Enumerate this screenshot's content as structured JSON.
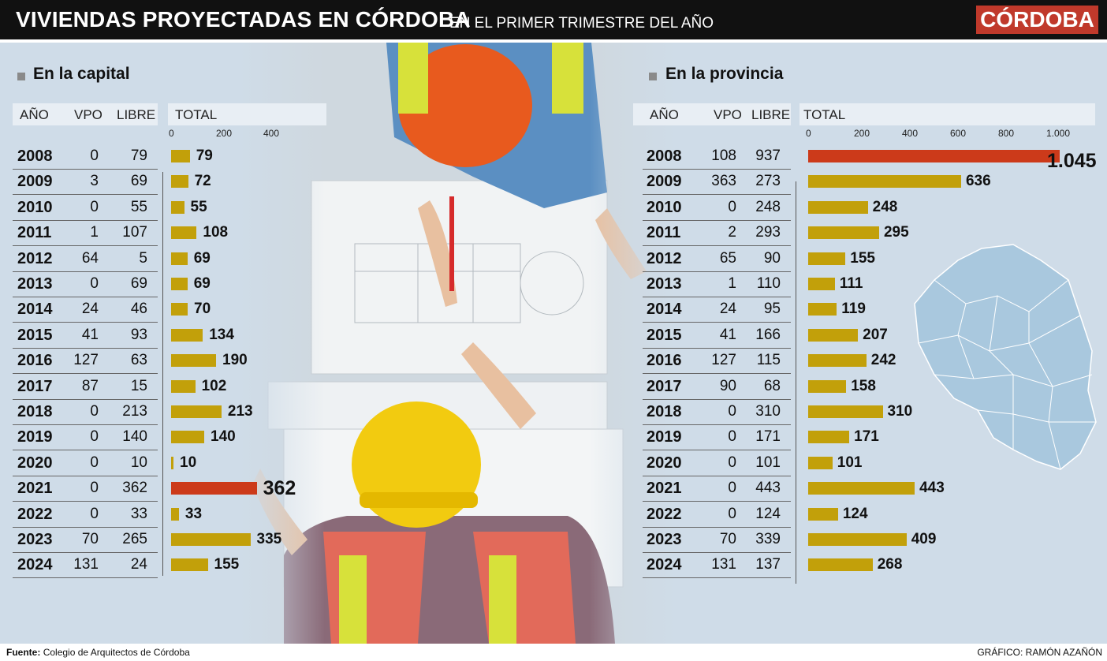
{
  "header": {
    "title": "VIVIENDAS  PROYECTADAS EN CÓRDOBA",
    "subtitle": "EN EL PRIMER TRIMESTRE DEL AÑO",
    "brand": "CÓRDOBA"
  },
  "columns": {
    "year": "AÑO",
    "vpo": "VPO",
    "libre": "LIBRE",
    "total": "TOTAL"
  },
  "footer": {
    "source_label": "Fuente:",
    "source": "Colegio de Arquitectos de Córdoba",
    "credit": "GRÁFICO: RAMÓN AZAÑÓN"
  },
  "colors": {
    "bar": "#c2a00a",
    "highlight": "#cc3a1a",
    "background": "#cfdce8",
    "header": "#111111",
    "brand": "#c0392b"
  },
  "chart_data": [
    {
      "type": "bar",
      "title": "En la capital",
      "xlabel": "TOTAL",
      "categories": [
        "2008",
        "2009",
        "2010",
        "2011",
        "2012",
        "2013",
        "2014",
        "2015",
        "2016",
        "2017",
        "2018",
        "2019",
        "2020",
        "2021",
        "2022",
        "2023",
        "2024"
      ],
      "vpo": [
        0,
        3,
        0,
        1,
        64,
        0,
        24,
        41,
        127,
        87,
        0,
        0,
        0,
        0,
        0,
        70,
        131
      ],
      "libre": [
        79,
        69,
        55,
        107,
        5,
        69,
        46,
        93,
        63,
        15,
        213,
        140,
        10,
        362,
        33,
        265,
        24
      ],
      "series": [
        {
          "name": "TOTAL",
          "values": [
            79,
            72,
            55,
            108,
            69,
            69,
            70,
            134,
            190,
            102,
            213,
            140,
            10,
            362,
            33,
            335,
            155
          ]
        }
      ],
      "value_labels": [
        "79",
        "72",
        "55",
        "108",
        "69",
        "69",
        "70",
        "134",
        "190",
        "102",
        "213",
        "140",
        "10",
        "362",
        "33",
        "335",
        "155"
      ],
      "highlight": "2021",
      "xlim": [
        0,
        400
      ],
      "ticks": [
        0,
        200,
        400
      ],
      "tick_labels": [
        "0",
        "200",
        "400"
      ]
    },
    {
      "type": "bar",
      "title": "En la provincia",
      "xlabel": "TOTAL",
      "categories": [
        "2008",
        "2009",
        "2010",
        "2011",
        "2012",
        "2013",
        "2014",
        "2015",
        "2016",
        "2017",
        "2018",
        "2019",
        "2020",
        "2021",
        "2022",
        "2023",
        "2024"
      ],
      "vpo": [
        108,
        363,
        0,
        2,
        65,
        1,
        24,
        41,
        127,
        90,
        0,
        0,
        0,
        0,
        0,
        70,
        131
      ],
      "libre": [
        937,
        273,
        248,
        293,
        90,
        110,
        95,
        166,
        115,
        68,
        310,
        171,
        101,
        443,
        124,
        339,
        137
      ],
      "series": [
        {
          "name": "TOTAL",
          "values": [
            1045,
            636,
            248,
            295,
            155,
            111,
            119,
            207,
            242,
            158,
            310,
            171,
            101,
            443,
            124,
            409,
            268
          ]
        }
      ],
      "value_labels": [
        "1.045",
        "636",
        "248",
        "295",
        "155",
        "111",
        "119",
        "207",
        "242",
        "158",
        "310",
        "171",
        "101",
        "443",
        "124",
        "409",
        "268"
      ],
      "highlight": "2008",
      "xlim": [
        0,
        1000
      ],
      "ticks": [
        0,
        200,
        400,
        600,
        800,
        1000
      ],
      "tick_labels": [
        "0",
        "200",
        "400",
        "600",
        "800",
        "1.000"
      ]
    }
  ]
}
